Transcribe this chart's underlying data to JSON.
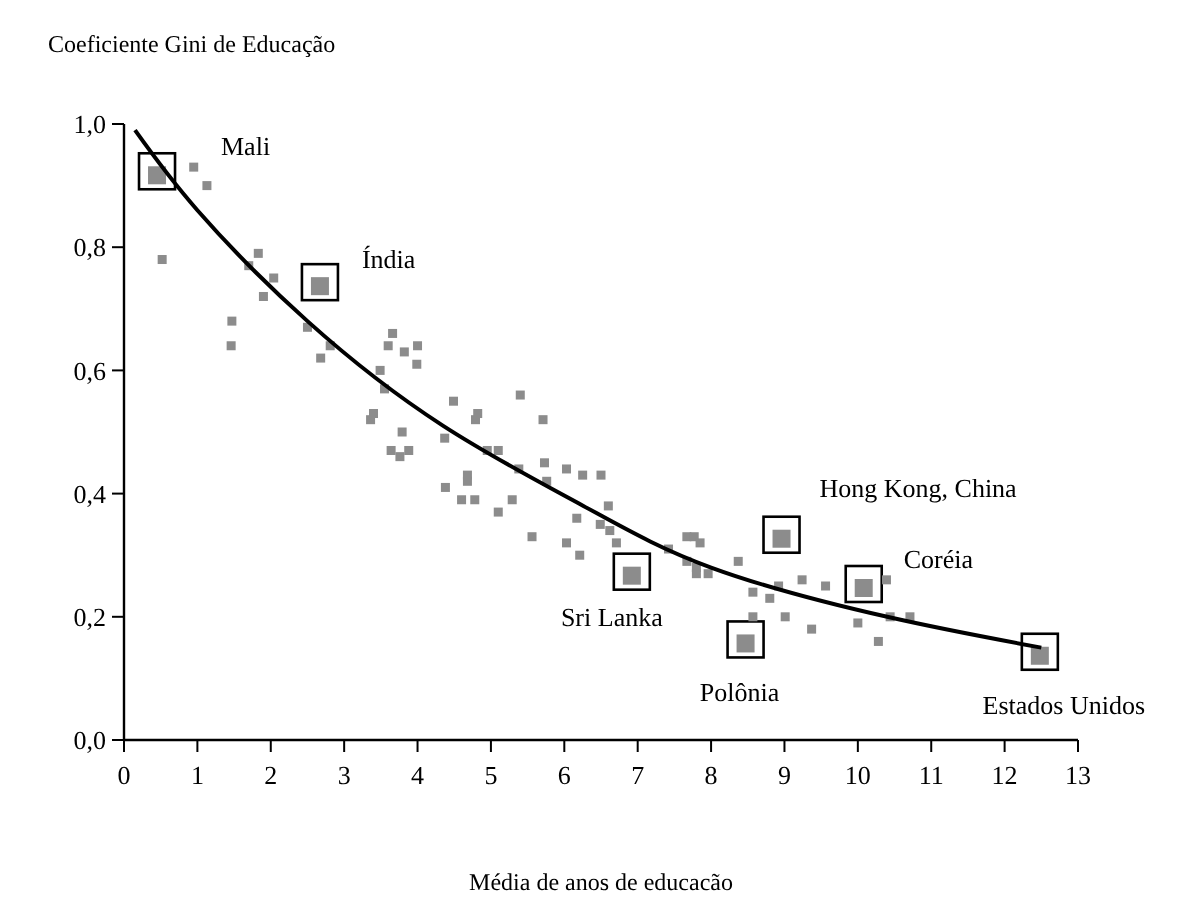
{
  "chart_data": {
    "type": "scatter",
    "ylabel": "Coeficiente Gini de Educação",
    "xlabel": "Média de anos de educacão",
    "xlim": [
      0,
      13
    ],
    "ylim": [
      0,
      1
    ],
    "xticks": [
      0,
      1,
      2,
      3,
      4,
      5,
      6,
      7,
      8,
      9,
      10,
      11,
      12,
      13
    ],
    "yticks": [
      {
        "value": 0,
        "label": "0,0"
      },
      {
        "value": 0.2,
        "label": "0,2"
      },
      {
        "value": 0.4,
        "label": "0,4"
      },
      {
        "value": 0.6,
        "label": "0,6"
      },
      {
        "value": 0.8,
        "label": "0,8"
      },
      {
        "value": 1,
        "label": "1,0"
      }
    ],
    "grid": false,
    "marker": "square",
    "series": [
      {
        "color": "#8c8c8c",
        "x": [
          0.45,
          2.67,
          6.92,
          8.47,
          8.96,
          10.08,
          12.48
        ],
        "values": [
          0.92,
          0.74,
          0.27,
          0.16,
          0.33,
          0.25,
          0.14
        ]
      },
      {
        "color": "#8c8c8c",
        "x": [
          0.95,
          1.13,
          0.52,
          1.83,
          1.7,
          2.04,
          1.9,
          1.47,
          1.46,
          2.5,
          2.81,
          2.68,
          3.66,
          3.6,
          3.82,
          4.0,
          3.99,
          3.49,
          3.55,
          3.4,
          3.36,
          3.79,
          3.64,
          3.88,
          3.76,
          4.49,
          4.82,
          4.79,
          5.4,
          5.71,
          4.37,
          4.95,
          5.1,
          4.68,
          4.68,
          4.38,
          4.6,
          4.78,
          5.1,
          5.29,
          5.38,
          5.73,
          5.76,
          6.03,
          6.25,
          6.5,
          6.6,
          5.56,
          6.03,
          6.21,
          6.17,
          6.49,
          6.71,
          6.62,
          7.42,
          7.67,
          7.77,
          7.85,
          7.67,
          7.8,
          7.8,
          7.96,
          8.37,
          8.57,
          8.57,
          8.92,
          8.8,
          9.01,
          9.24,
          9.56,
          9.37,
          10.0,
          10.28,
          10.39,
          10.44,
          10.71
        ],
        "values": [
          0.93,
          0.9,
          0.78,
          0.79,
          0.77,
          0.75,
          0.72,
          0.68,
          0.64,
          0.67,
          0.64,
          0.62,
          0.66,
          0.64,
          0.63,
          0.64,
          0.61,
          0.6,
          0.57,
          0.53,
          0.52,
          0.5,
          0.47,
          0.47,
          0.46,
          0.55,
          0.53,
          0.52,
          0.56,
          0.52,
          0.49,
          0.47,
          0.47,
          0.43,
          0.42,
          0.41,
          0.39,
          0.39,
          0.37,
          0.39,
          0.44,
          0.45,
          0.42,
          0.44,
          0.43,
          0.43,
          0.38,
          0.33,
          0.32,
          0.3,
          0.36,
          0.35,
          0.32,
          0.34,
          0.31,
          0.33,
          0.33,
          0.32,
          0.29,
          0.28,
          0.27,
          0.27,
          0.29,
          0.24,
          0.2,
          0.25,
          0.23,
          0.2,
          0.26,
          0.25,
          0.18,
          0.19,
          0.16,
          0.26,
          0.2,
          0.2
        ]
      },
      {
        "type": "line",
        "marker": "none",
        "color": "#000000",
        "x": [
          0.15,
          1,
          2.5,
          4.35,
          6.26,
          8,
          10.4,
          12.5
        ],
        "values": [
          0.99,
          0.86,
          0.68,
          0.51,
          0.38,
          0.28,
          0.2,
          0.15
        ]
      }
    ],
    "annotations": [
      {
        "text": "Mali",
        "x": 0.45,
        "y": 0.92
      },
      {
        "text": "Índia",
        "x": 2.67,
        "y": 0.74
      },
      {
        "text": "Sri Lanka",
        "x": 6.92,
        "y": 0.27
      },
      {
        "text": "Polônia",
        "x": 8.47,
        "y": 0.16
      },
      {
        "text": "Hong Kong, China",
        "x": 8.96,
        "y": 0.33
      },
      {
        "text": "Coréia",
        "x": 10.08,
        "y": 0.25
      },
      {
        "text": "Estados Unidos",
        "x": 12.48,
        "y": 0.14
      }
    ]
  }
}
